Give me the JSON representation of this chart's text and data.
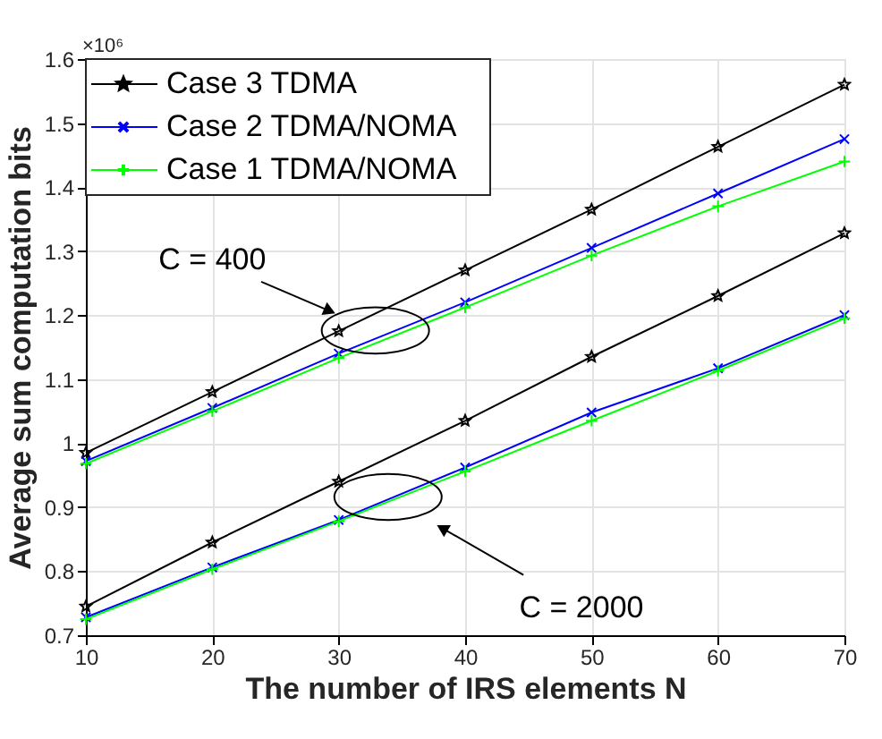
{
  "chart_data": {
    "type": "line",
    "xlabel": "The number of IRS elements N",
    "ylabel": "Average sum computation bits",
    "x": [
      10,
      20,
      30,
      40,
      50,
      60,
      70
    ],
    "series": [
      {
        "name": "Case 3 TDMA",
        "color": "#000000",
        "marker": "star",
        "values": [
          0.985,
          1.08,
          1.175,
          1.27,
          1.365,
          1.463,
          1.56
        ]
      },
      {
        "name": "Case 2 TDMA/NOMA",
        "color": "#0000ff",
        "marker": "cross",
        "values": [
          0.972,
          1.055,
          1.14,
          1.22,
          1.305,
          1.39,
          1.475
        ]
      },
      {
        "name": "Case 1 TDMA/NOMA",
        "color": "#00ff00",
        "marker": "plus",
        "values": [
          0.968,
          1.05,
          1.133,
          1.212,
          1.293,
          1.37,
          1.44
        ]
      },
      {
        "color": "#000000",
        "marker": "star",
        "values": [
          0.745,
          0.845,
          0.94,
          1.035,
          1.135,
          1.23,
          1.328
        ]
      },
      {
        "color": "#0000ff",
        "marker": "cross",
        "values": [
          0.728,
          0.806,
          0.88,
          0.962,
          1.048,
          1.117,
          1.2
        ]
      },
      {
        "color": "#00ff00",
        "marker": "plus",
        "values": [
          0.725,
          0.803,
          0.878,
          0.956,
          1.035,
          1.113,
          1.195
        ]
      }
    ],
    "xlim": [
      10,
      70
    ],
    "xticks": [
      10,
      20,
      30,
      40,
      50,
      60,
      70
    ],
    "ylim": [
      0.7,
      1.6
    ],
    "yticks": [
      0.7,
      0.8,
      0.9,
      1,
      1.1,
      1.2,
      1.3,
      1.4,
      1.5,
      1.6
    ],
    "grid": true,
    "legend": "top left",
    "line_style": "solid",
    "annotations": [
      "×10⁶",
      "C = 400",
      "C = 2000"
    ]
  }
}
